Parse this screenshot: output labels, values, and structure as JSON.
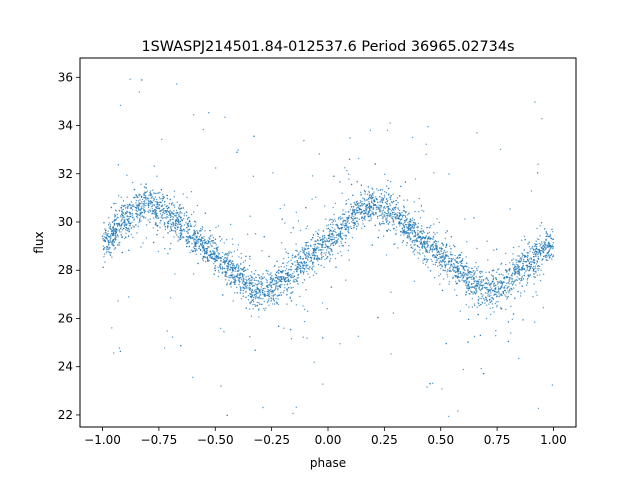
{
  "chart_data": {
    "type": "scatter",
    "title": "1SWASPJ214501.84-012537.6 Period 36965.02734s",
    "xlabel": "phase",
    "ylabel": "flux",
    "xlim": [
      -1.1,
      1.1
    ],
    "ylim": [
      21.5,
      36.8
    ],
    "x_ticks": [
      -1.0,
      -0.75,
      -0.5,
      -0.25,
      0.0,
      0.25,
      0.5,
      0.75,
      1.0
    ],
    "x_tick_labels": [
      "−1.00",
      "−0.75",
      "−0.50",
      "−0.25",
      "0.00",
      "0.25",
      "0.50",
      "0.75",
      "1.00"
    ],
    "y_ticks": [
      22,
      24,
      26,
      28,
      30,
      32,
      34,
      36
    ],
    "y_tick_labels": [
      "22",
      "24",
      "26",
      "28",
      "30",
      "32",
      "34",
      "36"
    ],
    "grid": false,
    "marker_color": "#1f77b4",
    "model": {
      "description": "phase-folded sinusoidal light curve, period 0.5 in phase",
      "mean_flux": 29.0,
      "amplitude": 1.6,
      "peak_phases": [
        -0.75,
        0.25
      ],
      "trough_phases": [
        -0.25,
        0.75
      ]
    },
    "series": [
      {
        "x": [
          -1.0,
          -0.95,
          -0.9,
          -0.85,
          -0.8,
          -0.75,
          -0.7,
          -0.65,
          -0.6,
          -0.55,
          -0.5,
          -0.45,
          -0.4,
          -0.35,
          -0.3,
          -0.25,
          -0.2,
          -0.15,
          -0.1,
          -0.05,
          0.0,
          0.05,
          0.1,
          0.15,
          0.2,
          0.25,
          0.3,
          0.35,
          0.4,
          0.45,
          0.5,
          0.55,
          0.6,
          0.65,
          0.7,
          0.75,
          0.8,
          0.85,
          0.9,
          0.95,
          1.0
        ],
        "y": [
          29.1,
          29.6,
          30.1,
          30.5,
          30.7,
          30.6,
          30.3,
          29.9,
          29.4,
          29.0,
          28.6,
          28.2,
          27.8,
          27.4,
          27.1,
          27.2,
          27.6,
          28.0,
          28.4,
          28.8,
          29.1,
          29.6,
          30.1,
          30.5,
          30.7,
          30.6,
          30.3,
          29.9,
          29.4,
          29.0,
          28.6,
          28.2,
          27.8,
          27.4,
          27.1,
          27.2,
          27.6,
          28.0,
          28.4,
          28.8,
          29.1
        ]
      }
    ]
  }
}
